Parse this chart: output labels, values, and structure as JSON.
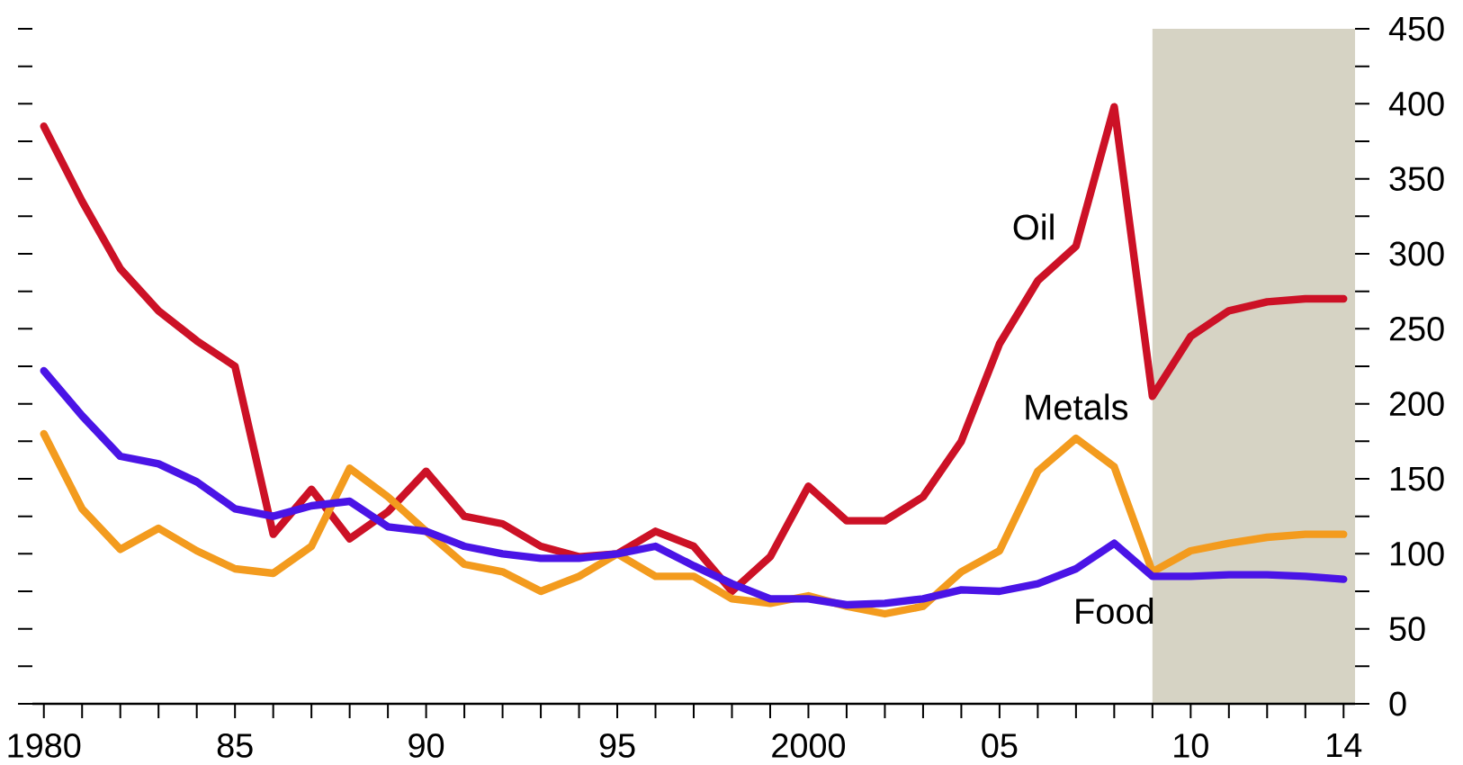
{
  "chart_data": {
    "type": "line",
    "x": [
      1980,
      1981,
      1982,
      1983,
      1984,
      1985,
      1986,
      1987,
      1988,
      1989,
      1990,
      1991,
      1992,
      1993,
      1994,
      1995,
      1996,
      1997,
      1998,
      1999,
      2000,
      2001,
      2002,
      2003,
      2004,
      2005,
      2006,
      2007,
      2008,
      2009,
      2010,
      2011,
      2012,
      2013,
      2014
    ],
    "series": [
      {
        "name": "Oil",
        "color": "#cc1126",
        "values": [
          385,
          335,
          290,
          262,
          242,
          225,
          113,
          143,
          110,
          128,
          155,
          125,
          120,
          105,
          98,
          100,
          115,
          105,
          75,
          98,
          145,
          122,
          122,
          138,
          175,
          240,
          282,
          305,
          398,
          205,
          245,
          262,
          268,
          270,
          270
        ]
      },
      {
        "name": "Metals",
        "color": "#f39b1e",
        "values": [
          180,
          130,
          103,
          117,
          102,
          90,
          87,
          105,
          157,
          138,
          115,
          93,
          88,
          75,
          85,
          100,
          85,
          85,
          70,
          67,
          72,
          65,
          60,
          65,
          88,
          102,
          155,
          177,
          158,
          88,
          102,
          107,
          111,
          113,
          113
        ]
      },
      {
        "name": "Food",
        "color": "#4a14e6",
        "values": [
          222,
          192,
          165,
          160,
          148,
          130,
          125,
          132,
          135,
          118,
          115,
          105,
          100,
          97,
          97,
          100,
          105,
          92,
          80,
          70,
          70,
          66,
          67,
          70,
          76,
          75,
          80,
          90,
          107,
          85,
          85,
          86,
          86,
          85,
          83
        ]
      }
    ],
    "xlim": [
      1979.7,
      2014.3
    ],
    "xticks": [
      1980,
      {
        "value": 1981,
        "label": null
      },
      {
        "value": 1982,
        "label": null
      },
      {
        "value": 1983,
        "label": null
      },
      {
        "value": 1984,
        "label": null
      },
      {
        "value": 1985,
        "label": "85"
      },
      {
        "value": 1986,
        "label": null
      },
      {
        "value": 1987,
        "label": null
      },
      {
        "value": 1988,
        "label": null
      },
      {
        "value": 1989,
        "label": null
      },
      {
        "value": 1990,
        "label": "90"
      },
      {
        "value": 1991,
        "label": null
      },
      {
        "value": 1992,
        "label": null
      },
      {
        "value": 1993,
        "label": null
      },
      {
        "value": 1994,
        "label": null
      },
      {
        "value": 1995,
        "label": "95"
      },
      {
        "value": 1996,
        "label": null
      },
      {
        "value": 1997,
        "label": null
      },
      {
        "value": 1998,
        "label": null
      },
      {
        "value": 1999,
        "label": null
      },
      2000,
      {
        "value": 2001,
        "label": null
      },
      {
        "value": 2002,
        "label": null
      },
      {
        "value": 2003,
        "label": null
      },
      {
        "value": 2004,
        "label": null
      },
      {
        "value": 2005,
        "label": "05"
      },
      {
        "value": 2006,
        "label": null
      },
      {
        "value": 2007,
        "label": null
      },
      {
        "value": 2008,
        "label": null
      },
      {
        "value": 2009,
        "label": null
      },
      {
        "value": 2010,
        "label": "10"
      },
      {
        "value": 2011,
        "label": null
      },
      {
        "value": 2012,
        "label": null
      },
      {
        "value": 2013,
        "label": null
      },
      {
        "value": 2014,
        "label": "14"
      }
    ],
    "ylim": [
      0,
      450
    ],
    "yticks": [
      0,
      {
        "value": 25,
        "label": null
      },
      50,
      {
        "value": 75,
        "label": null
      },
      100,
      {
        "value": 125,
        "label": null
      },
      150,
      {
        "value": 175,
        "label": null
      },
      200,
      {
        "value": 225,
        "label": null
      },
      250,
      {
        "value": 275,
        "label": null
      },
      300,
      {
        "value": 325,
        "label": null
      },
      350,
      {
        "value": 375,
        "label": null
      },
      400,
      {
        "value": 425,
        "label": null
      },
      450
    ],
    "bands": [
      {
        "axis": "x",
        "from": 2009,
        "to": 2014.3,
        "color": "#d6d3c4"
      }
    ],
    "grid": false,
    "legend": false,
    "marker": "none",
    "line_style": "solid"
  }
}
